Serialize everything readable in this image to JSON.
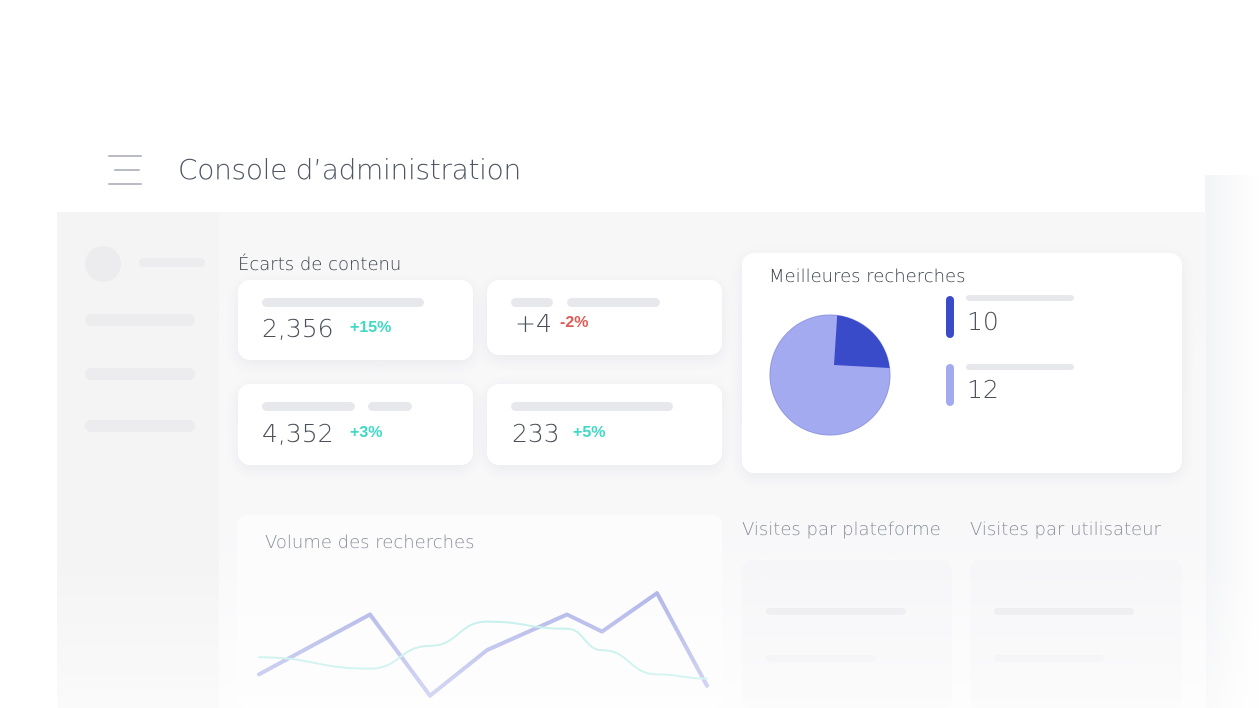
{
  "header": {
    "title": "Console d’administration",
    "menu_icon": "hamburger-menu-icon"
  },
  "content_gaps": {
    "label": "Écarts de contenu",
    "cards": [
      {
        "value": "2,356",
        "delta": "+15%",
        "trend": "up"
      },
      {
        "value": "+4",
        "delta": "-2%",
        "trend": "down"
      },
      {
        "value": "4,352",
        "delta": "+3%",
        "trend": "up"
      },
      {
        "value": "233",
        "delta": "+5%",
        "trend": "up"
      }
    ]
  },
  "top_searches": {
    "label": "Meilleures recherches",
    "legend": [
      {
        "value": "10",
        "color": "#3a4bc9"
      },
      {
        "value": "12",
        "color": "#a3aaf0"
      }
    ],
    "chart_data": {
      "type": "pie",
      "values": [
        10,
        12
      ],
      "note_colors": [
        "#3a4bc9",
        "#a3aaf0"
      ]
    }
  },
  "search_volume": {
    "label": "Volume des recherches",
    "chart_data": {
      "type": "line",
      "series": [
        {
          "values": [
            18,
            60,
            3,
            35,
            60,
            48,
            75,
            10
          ]
        },
        {
          "values": [
            30,
            22,
            38,
            55,
            50,
            35,
            18,
            15
          ]
        }
      ],
      "colors": [
        "#a8aee6",
        "#b7ece6"
      ]
    }
  },
  "visits_platform": {
    "label": "Visites par plateforme"
  },
  "visits_user": {
    "label": "Visites par utilisateur"
  },
  "colors": {
    "positive": "#3fd9c4",
    "negative": "#e05a55",
    "accent_dark": "#3a4bc9",
    "accent_light": "#a3aaf0"
  }
}
